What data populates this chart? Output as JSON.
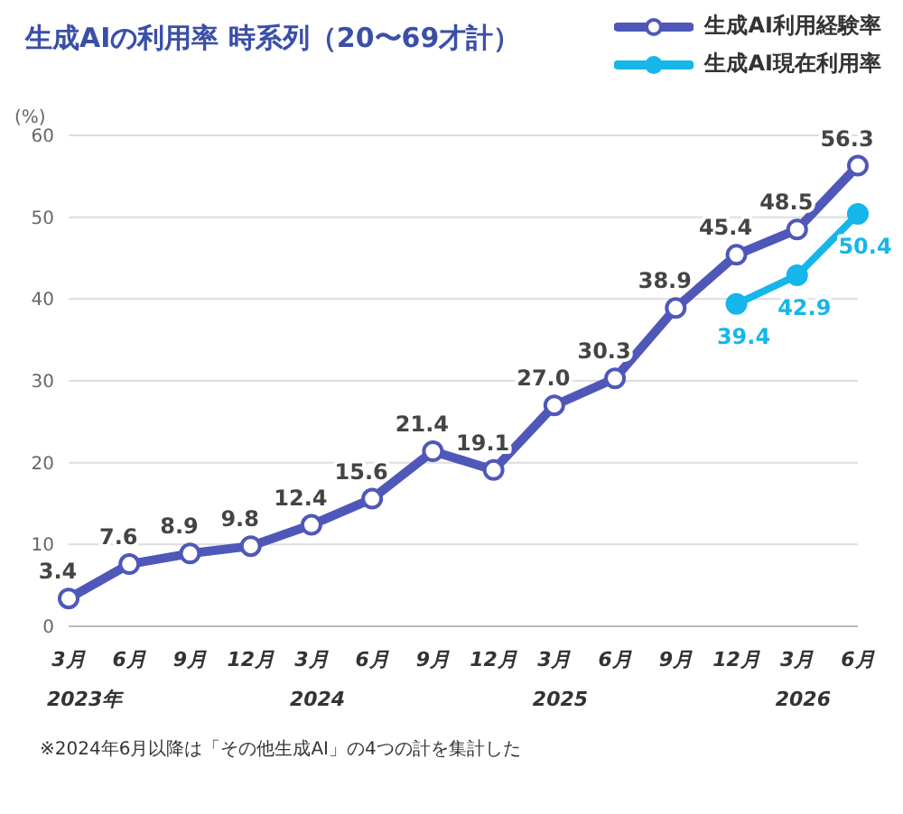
{
  "chart_data": {
    "type": "line",
    "title": "生成AIの利用率 時系列（20〜69才計）",
    "ylabel": "(%)",
    "categories": [
      "3月",
      "6月",
      "9月",
      "12月",
      "3月",
      "6月",
      "9月",
      "12月",
      "3月",
      "6月",
      "9月",
      "12月",
      "3月",
      "6月"
    ],
    "series": [
      {
        "name": "生成AI利用経験率",
        "color": "#4f58b8",
        "values": [
          3.4,
          7.6,
          8.9,
          9.8,
          12.4,
          15.6,
          21.4,
          19.1,
          27.0,
          30.3,
          38.9,
          45.4,
          48.5,
          56.3
        ],
        "value_labels": [
          "3.4",
          "7.6",
          "8.9",
          "9.8",
          "12.4",
          "15.6",
          "21.4",
          "19.1",
          "27.0",
          "30.3",
          "38.9",
          "45.4",
          "48.5",
          "56.3"
        ]
      },
      {
        "name": "生成AI現在利用率",
        "color": "#15b6ea",
        "values": [
          null,
          null,
          null,
          null,
          null,
          null,
          null,
          null,
          null,
          null,
          null,
          39.4,
          42.9,
          50.4
        ],
        "value_labels": [
          null,
          null,
          null,
          null,
          null,
          null,
          null,
          null,
          null,
          null,
          null,
          "39.4",
          "42.9",
          "50.4"
        ]
      }
    ],
    "ylim": [
      0,
      60
    ],
    "yticks": [
      0,
      10,
      20,
      30,
      40,
      50,
      60
    ],
    "grid": "y",
    "legend": "top right",
    "marker": "circle",
    "line_style": "solid",
    "data_labels": true,
    "annotations": [
      "2023年",
      "2024",
      "2025",
      "2026",
      "※2024年6月以降は「その他生成AI」の4つの計を集計した"
    ]
  }
}
